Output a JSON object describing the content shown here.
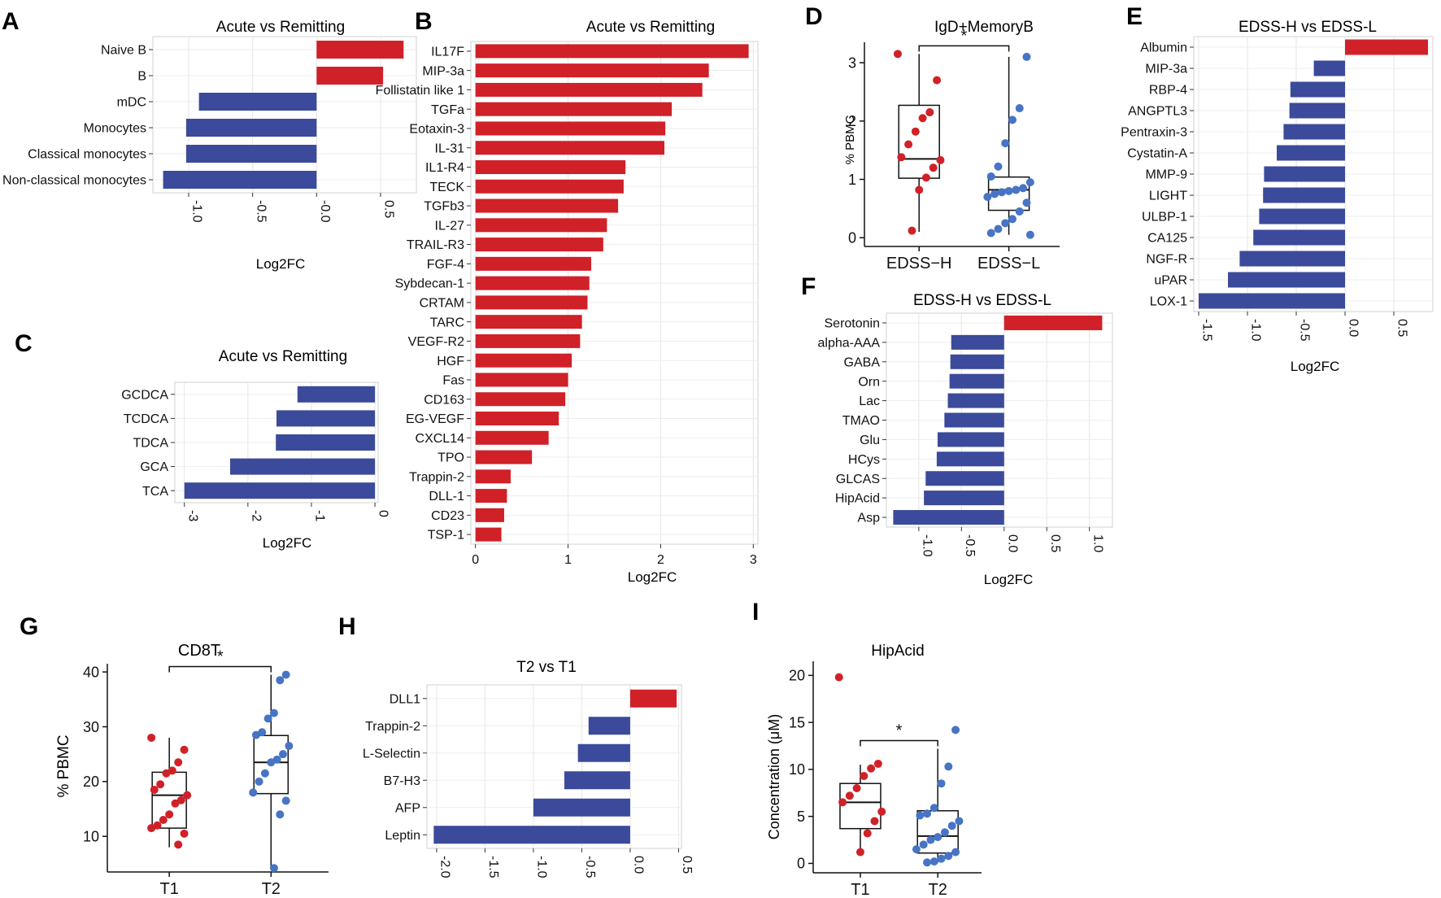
{
  "chart_data": [
    {
      "panel": "A",
      "type": "bar",
      "orientation": "horizontal",
      "title": "Acute vs Remitting",
      "xlabel": "Log2FC",
      "ylabel": "",
      "categories": [
        "Naive B",
        "B",
        "mDC",
        "Monocytes",
        "Classical monocytes",
        "Non-classical monocytes"
      ],
      "values": [
        0.68,
        0.52,
        -0.92,
        -1.02,
        -1.02,
        -1.2
      ],
      "xlim": [
        -1.28,
        0.78
      ],
      "xticks": [
        -1.0,
        -0.5,
        0.0,
        0.5
      ],
      "xtick_labels": [
        "-1.0",
        "-0.5",
        "-0.0",
        "0.5"
      ],
      "tick_rotation": 90,
      "colors": {
        "positive": "#d02128",
        "negative": "#3b4a9a"
      }
    },
    {
      "panel": "B",
      "type": "bar",
      "orientation": "horizontal",
      "title": "Acute vs Remitting",
      "xlabel": "Log2FC",
      "ylabel": "",
      "categories": [
        "IL17F",
        "MIP-3a",
        "Follistatin like 1",
        "TGFa",
        "Eotaxin-3",
        "IL-31",
        "IL1-R4",
        "TECK",
        "TGFb3",
        "IL-27",
        "TRAIL-R3",
        "FGF-4",
        "Sybdecan-1",
        "CRTAM",
        "TARC",
        "VEGF-R2",
        "HGF",
        "Fas",
        "CD163",
        "EG-VEGF",
        "CXCL14",
        "TPO",
        "Trappin-2",
        "DLL-1",
        "CD23",
        "TSP-1"
      ],
      "values": [
        2.95,
        2.52,
        2.45,
        2.12,
        2.05,
        2.04,
        1.62,
        1.6,
        1.54,
        1.42,
        1.38,
        1.25,
        1.23,
        1.21,
        1.15,
        1.13,
        1.04,
        1.0,
        0.97,
        0.9,
        0.79,
        0.61,
        0.38,
        0.34,
        0.31,
        0.28
      ],
      "xlim": [
        -0.05,
        3.05
      ],
      "xticks": [
        0,
        1,
        2,
        3
      ],
      "xtick_labels": [
        "0",
        "1",
        "2",
        "3"
      ],
      "tick_rotation": 0,
      "colors": {
        "positive": "#d02128",
        "negative": "#3b4a9a"
      }
    },
    {
      "panel": "C",
      "type": "bar",
      "orientation": "horizontal",
      "title": "Acute vs Remitting",
      "xlabel": "Log2FC",
      "ylabel": "",
      "categories": [
        "GCDCA",
        "TCDCA",
        "TDCA",
        "GCA",
        "TCA"
      ],
      "values": [
        -1.22,
        -1.55,
        -1.56,
        -2.28,
        -3.0
      ],
      "xlim": [
        -3.15,
        0.05
      ],
      "xticks": [
        -3,
        -2,
        -1,
        0
      ],
      "xtick_labels": [
        "-3",
        "-2",
        "-1",
        "0"
      ],
      "tick_rotation": 90,
      "colors": {
        "positive": "#d02128",
        "negative": "#3b4a9a"
      }
    },
    {
      "panel": "D",
      "type": "box",
      "title": "IgD+MemoryB",
      "ylabel": "% PBMC",
      "xlabel": "",
      "categories": [
        "EDSS−H",
        "EDSS−L"
      ],
      "ylim": [
        -0.15,
        3.35
      ],
      "yticks": [
        0,
        1,
        2,
        3
      ],
      "ytick_labels": [
        "0",
        "1",
        "2",
        "3"
      ],
      "boxes": [
        {
          "q1": 1.02,
          "median": 1.35,
          "q3": 2.27,
          "whisker_low": 0.1,
          "whisker_high": 3.15
        },
        {
          "q1": 0.47,
          "median": 0.82,
          "q3": 1.04,
          "whisker_low": 0.05,
          "whisker_high": 3.1
        }
      ],
      "points": [
        [
          3.15,
          2.7,
          2.15,
          2.05,
          1.82,
          1.6,
          1.38,
          1.33,
          1.2,
          1.03,
          0.82,
          0.12
        ],
        [
          3.1,
          2.22,
          2.02,
          1.62,
          1.22,
          1.05,
          0.95,
          0.85,
          0.82,
          0.8,
          0.78,
          0.75,
          0.7,
          0.6,
          0.45,
          0.32,
          0.25,
          0.15,
          0.08,
          0.05
        ]
      ],
      "significance": "*",
      "point_colors": [
        "#d02128",
        "#4774c4"
      ]
    },
    {
      "panel": "E",
      "type": "bar",
      "orientation": "horizontal",
      "title": "EDSS-H vs EDSS-L",
      "xlabel": "Log2FC",
      "ylabel": "",
      "categories": [
        "Albumin",
        "MIP-3a",
        "RBP-4",
        "ANGPTL3",
        "Pentraxin-3",
        "Cystatin-A",
        "MMP-9",
        "LIGHT",
        "ULBP-1",
        "CA125",
        "NGF-R",
        "uPAR",
        "LOX-1"
      ],
      "values": [
        0.85,
        -0.32,
        -0.56,
        -0.57,
        -0.63,
        -0.7,
        -0.83,
        -0.84,
        -0.88,
        -0.94,
        -1.08,
        -1.2,
        -1.5
      ],
      "xlim": [
        -1.55,
        0.9
      ],
      "xticks": [
        -1.5,
        -1.0,
        -0.5,
        0.0,
        0.5
      ],
      "xtick_labels": [
        "-1.5",
        "-1.0",
        "-0.5",
        "0.0",
        "0.5"
      ],
      "tick_rotation": 90,
      "colors": {
        "positive": "#d02128",
        "negative": "#3b4a9a"
      }
    },
    {
      "panel": "F",
      "type": "bar",
      "orientation": "horizontal",
      "title": "EDSS-H vs EDSS-L",
      "xlabel": "Log2FC",
      "ylabel": "",
      "categories": [
        "Serotonin",
        "alpha-AAA",
        "GABA",
        "Orn",
        "Lac",
        "TMAO",
        "Glu",
        "HCys",
        "GLCAS",
        "HipAcid",
        "Asp"
      ],
      "values": [
        1.15,
        -0.62,
        -0.63,
        -0.64,
        -0.66,
        -0.7,
        -0.78,
        -0.79,
        -0.92,
        -0.94,
        -1.3
      ],
      "xlim": [
        -1.38,
        1.27
      ],
      "xticks": [
        -1.0,
        -0.5,
        0.0,
        0.5,
        1.0
      ],
      "xtick_labels": [
        "-1.0",
        "-0.5",
        "0.0",
        "0.5",
        "1.0"
      ],
      "tick_rotation": 90,
      "colors": {
        "positive": "#d02128",
        "negative": "#3b4a9a"
      }
    },
    {
      "panel": "G",
      "type": "box",
      "title": "CD8T",
      "ylabel": "% PBMC",
      "xlabel": "",
      "categories": [
        "T1",
        "T2"
      ],
      "ylim": [
        3.5,
        41.5
      ],
      "yticks": [
        10,
        20,
        30,
        40
      ],
      "ytick_labels": [
        "10",
        "20",
        "30",
        "40"
      ],
      "boxes": [
        {
          "q1": 11.5,
          "median": 17.5,
          "q3": 21.7,
          "whisker_low": 8,
          "whisker_high": 28
        },
        {
          "q1": 17.8,
          "median": 23.5,
          "q3": 28.4,
          "whisker_low": 4.2,
          "whisker_high": 39.5
        }
      ],
      "points": [
        [
          28,
          25.8,
          23.5,
          22,
          21.5,
          19.5,
          18.5,
          17.5,
          16.6,
          16,
          14,
          13,
          12,
          11.5,
          10.5,
          8.5
        ],
        [
          39.5,
          38.5,
          32.5,
          31.5,
          29,
          28.5,
          26.5,
          25,
          24,
          23.5,
          21.5,
          20,
          18,
          16.5,
          14,
          4.2
        ]
      ],
      "significance": "*",
      "point_colors": [
        "#d02128",
        "#4774c4"
      ]
    },
    {
      "panel": "H",
      "type": "bar",
      "orientation": "horizontal",
      "title": "T2 vs T1",
      "xlabel": "",
      "ylabel": "",
      "categories": [
        "DLL1",
        "Trappin-2",
        "L-Selectin",
        "B7-H3",
        "AFP",
        "Leptin"
      ],
      "values": [
        0.48,
        -0.43,
        -0.54,
        -0.68,
        -1.0,
        -2.03
      ],
      "xlim": [
        -2.1,
        0.53
      ],
      "xticks": [
        -2.0,
        -1.5,
        -1.0,
        -0.5,
        0.0,
        0.5
      ],
      "xtick_labels": [
        "-2.0",
        "-1.5",
        "-1.0",
        "-0.5",
        "0.0",
        "0.5"
      ],
      "tick_rotation": 90,
      "colors": {
        "positive": "#d02128",
        "negative": "#3b4a9a"
      }
    },
    {
      "panel": "I",
      "type": "box",
      "title": "HipAcid",
      "ylabel": "Concentration (μM)",
      "xlabel": "",
      "categories": [
        "T1",
        "T2"
      ],
      "ylim": [
        -1,
        21.5
      ],
      "yticks": [
        0,
        5,
        10,
        15,
        20
      ],
      "ytick_labels": [
        "0",
        "5",
        "10",
        "15",
        "20"
      ],
      "boxes": [
        {
          "q1": 3.7,
          "median": 6.5,
          "q3": 8.5,
          "whisker_low": 1.2,
          "whisker_high": 10.5
        },
        {
          "q1": 1.1,
          "median": 2.9,
          "q3": 5.6,
          "whisker_low": 0.1,
          "whisker_high": 12.2
        }
      ],
      "points": [
        [
          19.8,
          10.6,
          10.1,
          9.3,
          8.0,
          7.2,
          6.5,
          5.5,
          4.5,
          3.2,
          1.2
        ],
        [
          14.2,
          10.3,
          8.5,
          5.9,
          5.3,
          5.1,
          4.5,
          4.0,
          3.3,
          2.8,
          2.5,
          2.0,
          1.5,
          1.2,
          0.8,
          0.5,
          0.2,
          0.1
        ]
      ],
      "significance": "*",
      "point_colors": [
        "#d02128",
        "#4774c4"
      ]
    }
  ]
}
